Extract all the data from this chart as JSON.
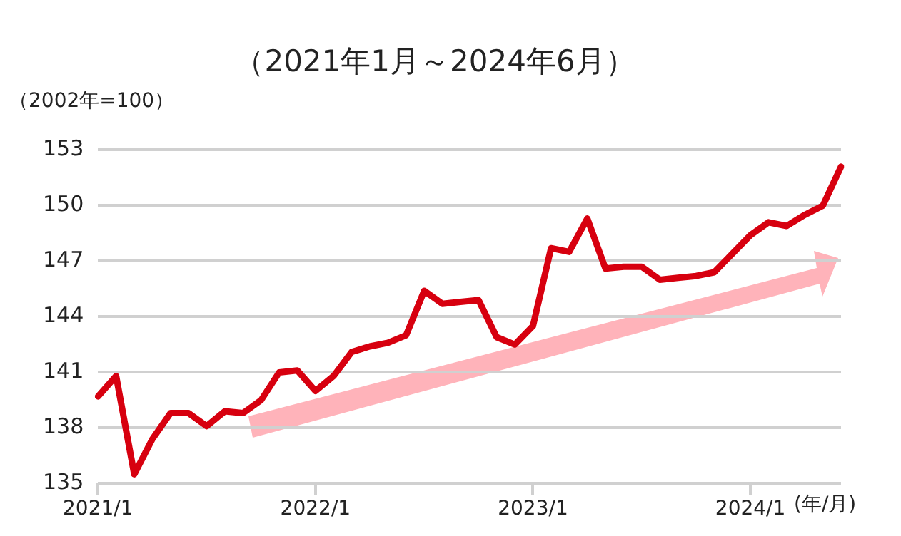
{
  "chart_data": {
    "type": "line",
    "title": "（2021年1月～2024年6月）",
    "ylabel": "（2002年=100）",
    "xlabel": "(年/月)",
    "categories": [
      "2021/1",
      null,
      null,
      null,
      null,
      null,
      null,
      null,
      null,
      null,
      null,
      null,
      "2022/1",
      null,
      null,
      null,
      null,
      null,
      null,
      null,
      null,
      null,
      null,
      null,
      "2023/1",
      null,
      null,
      null,
      null,
      null,
      null,
      null,
      null,
      null,
      null,
      null,
      "2024/1",
      null,
      null,
      null,
      null,
      null
    ],
    "series": [
      {
        "color": "#d7000f",
        "values": [
          139.7,
          140.8,
          135.5,
          137.4,
          138.8,
          138.8,
          138.1,
          138.9,
          138.8,
          139.5,
          141.0,
          141.1,
          140.0,
          140.8,
          142.1,
          142.4,
          142.6,
          143.0,
          145.4,
          144.7,
          144.8,
          144.9,
          142.9,
          142.5,
          143.5,
          147.7,
          147.5,
          149.3,
          146.6,
          146.7,
          146.7,
          146.0,
          146.1,
          146.2,
          146.4,
          147.4,
          148.4,
          149.1,
          148.9,
          149.5,
          150.0,
          152.1
        ]
      }
    ],
    "ylim": [
      135,
      153
    ],
    "yticks": [
      135,
      138,
      141,
      144,
      147,
      150,
      153
    ],
    "grid": "y",
    "legend": false,
    "marker": "none",
    "line_style": "solid"
  }
}
